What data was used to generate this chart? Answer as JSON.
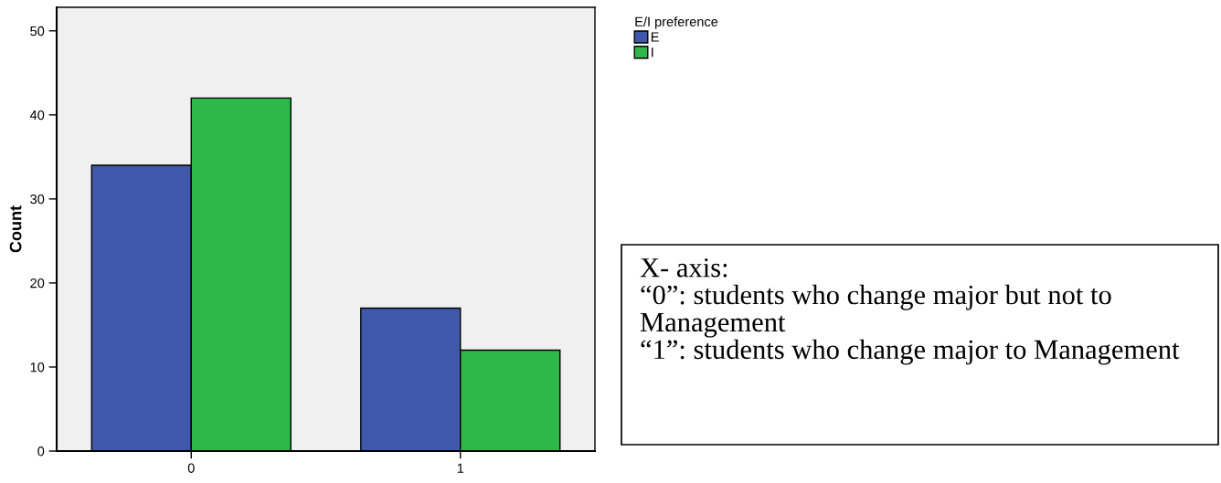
{
  "chart_data": {
    "type": "bar",
    "ylabel": "Count",
    "categories": [
      "0",
      "1"
    ],
    "series": [
      {
        "name": "E",
        "color": "#3f58aa",
        "values": [
          34,
          17
        ]
      },
      {
        "name": "I",
        "color": "#2fb84a",
        "values": [
          42,
          12
        ]
      }
    ],
    "ylim": [
      0,
      52.8
    ],
    "yticks": [
      0,
      10,
      20,
      30,
      40,
      50
    ],
    "legend_title": "E/I preference",
    "legend": "top right",
    "grid": false,
    "annotations": [
      "X- axis:",
      "“0”: students who change major but not to Management",
      "“1”: students who change major to Management"
    ]
  }
}
